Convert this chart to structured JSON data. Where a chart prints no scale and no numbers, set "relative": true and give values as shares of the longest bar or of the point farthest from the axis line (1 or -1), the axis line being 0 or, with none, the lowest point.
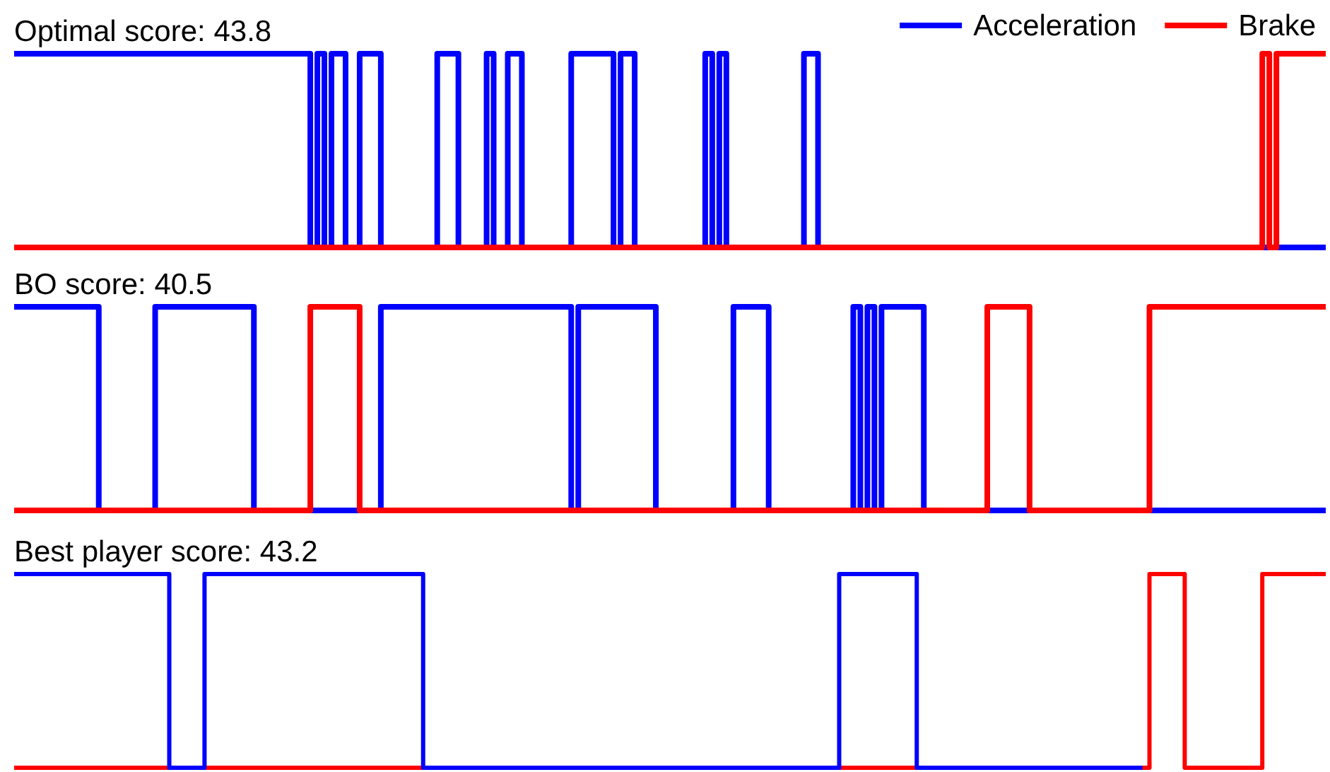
{
  "chart_data": [
    {
      "type": "step",
      "title": "Optimal score: 43.8",
      "relative": true,
      "legend": "top right",
      "categories": [
        null,
        null,
        null,
        null,
        null,
        null,
        null,
        null,
        null,
        null,
        null,
        null,
        null,
        null,
        null,
        null,
        null,
        null,
        null,
        null,
        null,
        null,
        null,
        null,
        null,
        null,
        null,
        null,
        null,
        null,
        null,
        null,
        null,
        null,
        null,
        null,
        null,
        null,
        null,
        null,
        null,
        null,
        null,
        null,
        null,
        null,
        null,
        null,
        null,
        null,
        null,
        null,
        null,
        null,
        null,
        null,
        null,
        null,
        null,
        null,
        null,
        null,
        null,
        null,
        null,
        null,
        null,
        null,
        null,
        null,
        null,
        null,
        null,
        null,
        null,
        null,
        null,
        null,
        null,
        null,
        null,
        null,
        null,
        null,
        null,
        null,
        null,
        null,
        null,
        null,
        null,
        null,
        null,
        null,
        null,
        null,
        null,
        null,
        null,
        null,
        null,
        null,
        null,
        null,
        null,
        null,
        null,
        null,
        null,
        null,
        null,
        null,
        null,
        null,
        null,
        null,
        null,
        null,
        null,
        null,
        null,
        null,
        null,
        null,
        null,
        null,
        null,
        null,
        null,
        null,
        null,
        null,
        null,
        null,
        null,
        null,
        null,
        null,
        null,
        null,
        null,
        null,
        null,
        null,
        null,
        null,
        null,
        null,
        null,
        null,
        null,
        null,
        null,
        null,
        null,
        null,
        null,
        null,
        null,
        null,
        null,
        null,
        null,
        null,
        null,
        null,
        null,
        null,
        null,
        null,
        null,
        null,
        null,
        null,
        null,
        null,
        null,
        null,
        null,
        null,
        null,
        null,
        null,
        null,
        null,
        null,
        null
      ],
      "series": [
        {
          "name": "Acceleration",
          "color": "#0000ff",
          "values": [
            1,
            1,
            1,
            1,
            1,
            1,
            1,
            1,
            1,
            1,
            1,
            1,
            1,
            1,
            1,
            1,
            1,
            1,
            1,
            1,
            1,
            1,
            1,
            1,
            1,
            1,
            1,
            1,
            1,
            1,
            1,
            1,
            1,
            1,
            1,
            1,
            1,
            1,
            1,
            1,
            1,
            1,
            0,
            1,
            0,
            1,
            1,
            0,
            0,
            1,
            1,
            1,
            0,
            0,
            0,
            0,
            0,
            0,
            0,
            0,
            1,
            1,
            1,
            0,
            0,
            0,
            0,
            1,
            0,
            0,
            1,
            1,
            0,
            0,
            0,
            0,
            0,
            0,
            0,
            1,
            1,
            1,
            1,
            1,
            1,
            0,
            1,
            1,
            0,
            0,
            0,
            0,
            0,
            0,
            0,
            0,
            0,
            0,
            1,
            0,
            1,
            0,
            0,
            0,
            0,
            0,
            0,
            0,
            0,
            0,
            0,
            0,
            1,
            1,
            0,
            0,
            0,
            0,
            0,
            0,
            0,
            0,
            0,
            0,
            0,
            0,
            0,
            0,
            0,
            0,
            0,
            0,
            0,
            0,
            0,
            0,
            0,
            0,
            0,
            0,
            0,
            0,
            0,
            0,
            0,
            0,
            0,
            0,
            0,
            0,
            0,
            0,
            0,
            0,
            0,
            0,
            0,
            0,
            0,
            0,
            0,
            0,
            0,
            0,
            0,
            0,
            0,
            0,
            0,
            0,
            0,
            0,
            0,
            0,
            0,
            0,
            0,
            0,
            0,
            0,
            0,
            0,
            0,
            0,
            0,
            0,
            0
          ]
        },
        {
          "name": "Brake",
          "color": "#ff0000",
          "values": [
            0,
            0,
            0,
            0,
            0,
            0,
            0,
            0,
            0,
            0,
            0,
            0,
            0,
            0,
            0,
            0,
            0,
            0,
            0,
            0,
            0,
            0,
            0,
            0,
            0,
            0,
            0,
            0,
            0,
            0,
            0,
            0,
            0,
            0,
            0,
            0,
            0,
            0,
            0,
            0,
            0,
            0,
            0,
            0,
            0,
            0,
            0,
            0,
            0,
            0,
            0,
            0,
            0,
            0,
            0,
            0,
            0,
            0,
            0,
            0,
            0,
            0,
            0,
            0,
            0,
            0,
            0,
            0,
            0,
            0,
            0,
            0,
            0,
            0,
            0,
            0,
            0,
            0,
            0,
            0,
            0,
            0,
            0,
            0,
            0,
            0,
            0,
            0,
            0,
            0,
            0,
            0,
            0,
            0,
            0,
            0,
            0,
            0,
            0,
            0,
            0,
            0,
            0,
            0,
            0,
            0,
            0,
            0,
            0,
            0,
            0,
            0,
            0,
            0,
            0,
            0,
            0,
            0,
            0,
            0,
            0,
            0,
            0,
            0,
            0,
            0,
            0,
            0,
            0,
            0,
            0,
            0,
            0,
            0,
            0,
            0,
            0,
            0,
            0,
            0,
            0,
            0,
            0,
            0,
            0,
            0,
            0,
            0,
            0,
            0,
            0,
            0,
            0,
            0,
            0,
            0,
            0,
            0,
            0,
            0,
            0,
            0,
            0,
            0,
            0,
            0,
            0,
            0,
            0,
            0,
            0,
            0,
            0,
            0,
            0,
            0,
            0,
            1,
            0,
            1,
            1,
            1,
            1,
            1,
            1,
            1,
            1
          ]
        }
      ]
    },
    {
      "type": "step",
      "title": "BO score: 40.5",
      "relative": true,
      "categories": [
        null,
        null,
        null,
        null,
        null,
        null,
        null,
        null,
        null,
        null,
        null,
        null,
        null,
        null,
        null,
        null,
        null,
        null,
        null,
        null,
        null,
        null,
        null,
        null,
        null,
        null,
        null,
        null,
        null,
        null,
        null,
        null,
        null,
        null,
        null,
        null,
        null,
        null,
        null,
        null,
        null,
        null,
        null,
        null,
        null,
        null,
        null,
        null,
        null,
        null,
        null,
        null,
        null,
        null,
        null,
        null,
        null,
        null,
        null,
        null,
        null,
        null,
        null,
        null,
        null,
        null,
        null,
        null,
        null,
        null,
        null,
        null,
        null,
        null,
        null,
        null,
        null,
        null,
        null,
        null,
        null,
        null,
        null,
        null,
        null,
        null,
        null,
        null,
        null,
        null,
        null,
        null,
        null,
        null,
        null,
        null,
        null,
        null,
        null,
        null,
        null,
        null,
        null,
        null,
        null,
        null,
        null,
        null,
        null,
        null,
        null,
        null,
        null,
        null,
        null,
        null,
        null,
        null,
        null,
        null,
        null,
        null,
        null,
        null,
        null,
        null,
        null,
        null,
        null,
        null,
        null,
        null,
        null,
        null,
        null,
        null,
        null,
        null,
        null,
        null,
        null,
        null,
        null,
        null,
        null,
        null,
        null,
        null,
        null,
        null,
        null,
        null,
        null,
        null,
        null,
        null,
        null,
        null,
        null,
        null,
        null,
        null,
        null,
        null,
        null,
        null,
        null,
        null,
        null,
        null,
        null,
        null,
        null,
        null,
        null,
        null,
        null,
        null,
        null,
        null,
        null,
        null,
        null,
        null,
        null,
        null,
        null
      ],
      "series": [
        {
          "color": "#0000ff",
          "values": [
            1,
            1,
            1,
            1,
            1,
            1,
            1,
            1,
            1,
            1,
            1,
            1,
            0,
            0,
            0,
            0,
            0,
            0,
            0,
            0,
            1,
            1,
            1,
            1,
            1,
            1,
            1,
            1,
            1,
            1,
            1,
            1,
            1,
            1,
            0,
            0,
            0,
            0,
            0,
            0,
            0,
            0,
            0,
            0,
            0,
            0,
            0,
            0,
            0,
            0,
            0,
            0,
            1,
            1,
            1,
            1,
            1,
            1,
            1,
            1,
            1,
            1,
            1,
            1,
            1,
            1,
            1,
            1,
            1,
            1,
            1,
            1,
            1,
            1,
            1,
            1,
            1,
            1,
            1,
            0,
            1,
            1,
            1,
            1,
            1,
            1,
            1,
            1,
            1,
            1,
            1,
            0,
            0,
            0,
            0,
            0,
            0,
            0,
            0,
            0,
            0,
            0,
            1,
            1,
            1,
            1,
            1,
            0,
            0,
            0,
            0,
            0,
            0,
            0,
            0,
            0,
            0,
            0,
            0,
            1,
            0,
            1,
            0,
            1,
            1,
            1,
            1,
            1,
            1,
            0,
            0,
            0,
            0,
            0,
            0,
            0,
            0,
            0,
            0,
            0,
            0,
            0,
            0,
            0,
            0,
            0,
            0,
            0,
            0,
            0,
            0,
            0,
            0,
            0,
            0,
            0,
            0,
            0,
            0,
            0,
            0,
            0,
            0,
            0,
            0,
            0,
            0,
            0,
            0,
            0,
            0,
            0,
            0,
            0,
            0,
            0,
            0,
            0,
            0,
            0,
            0,
            0,
            0,
            0,
            0,
            0,
            0
          ]
        },
        {
          "color": "#ff0000",
          "values": [
            0,
            0,
            0,
            0,
            0,
            0,
            0,
            0,
            0,
            0,
            0,
            0,
            0,
            0,
            0,
            0,
            0,
            0,
            0,
            0,
            0,
            0,
            0,
            0,
            0,
            0,
            0,
            0,
            0,
            0,
            0,
            0,
            0,
            0,
            0,
            0,
            0,
            0,
            0,
            0,
            0,
            0,
            1,
            1,
            1,
            1,
            1,
            1,
            1,
            0,
            0,
            0,
            0,
            0,
            0,
            0,
            0,
            0,
            0,
            0,
            0,
            0,
            0,
            0,
            0,
            0,
            0,
            0,
            0,
            0,
            0,
            0,
            0,
            0,
            0,
            0,
            0,
            0,
            0,
            0,
            0,
            0,
            0,
            0,
            0,
            0,
            0,
            0,
            0,
            0,
            0,
            0,
            0,
            0,
            0,
            0,
            0,
            0,
            0,
            0,
            0,
            0,
            0,
            0,
            0,
            0,
            0,
            0,
            0,
            0,
            0,
            0,
            0,
            0,
            0,
            0,
            0,
            0,
            0,
            0,
            0,
            0,
            0,
            0,
            0,
            0,
            0,
            0,
            0,
            0,
            0,
            0,
            0,
            0,
            0,
            0,
            0,
            0,
            1,
            1,
            1,
            1,
            1,
            1,
            0,
            0,
            0,
            0,
            0,
            0,
            0,
            0,
            0,
            0,
            0,
            0,
            0,
            0,
            0,
            0,
            0,
            1,
            1,
            1,
            1,
            1,
            1,
            1,
            1,
            1,
            1,
            1,
            1,
            1,
            1,
            1,
            1,
            1,
            1,
            1,
            1,
            1,
            1,
            1,
            1,
            1,
            1
          ]
        }
      ]
    },
    {
      "type": "step",
      "title": "Best player score: 43.2",
      "relative": true,
      "categories": [
        null,
        null,
        null,
        null,
        null,
        null,
        null,
        null,
        null,
        null,
        null,
        null,
        null,
        null,
        null,
        null,
        null,
        null,
        null,
        null,
        null,
        null,
        null,
        null,
        null,
        null,
        null,
        null,
        null,
        null,
        null,
        null,
        null,
        null,
        null,
        null,
        null,
        null,
        null,
        null,
        null,
        null,
        null,
        null,
        null,
        null,
        null,
        null,
        null,
        null,
        null,
        null,
        null,
        null,
        null,
        null,
        null,
        null,
        null,
        null,
        null,
        null,
        null,
        null,
        null,
        null,
        null,
        null,
        null,
        null,
        null,
        null,
        null,
        null,
        null,
        null,
        null,
        null,
        null,
        null,
        null,
        null,
        null,
        null,
        null,
        null,
        null,
        null,
        null,
        null,
        null,
        null,
        null,
        null,
        null,
        null,
        null,
        null,
        null,
        null,
        null,
        null,
        null,
        null,
        null,
        null,
        null,
        null,
        null,
        null,
        null,
        null,
        null,
        null,
        null,
        null,
        null,
        null,
        null,
        null,
        null,
        null,
        null,
        null,
        null,
        null,
        null,
        null,
        null,
        null,
        null,
        null,
        null,
        null,
        null,
        null,
        null,
        null,
        null,
        null,
        null,
        null,
        null,
        null,
        null,
        null,
        null,
        null,
        null,
        null,
        null,
        null,
        null,
        null,
        null,
        null,
        null,
        null,
        null,
        null,
        null,
        null,
        null,
        null,
        null,
        null,
        null,
        null,
        null,
        null,
        null,
        null,
        null,
        null,
        null,
        null,
        null,
        null,
        null,
        null,
        null,
        null,
        null,
        null,
        null,
        null,
        null
      ],
      "series": [
        {
          "color": "#ff0000",
          "values": [
            0,
            0,
            0,
            0,
            0,
            0,
            0,
            0,
            0,
            0,
            0,
            0,
            0,
            0,
            0,
            0,
            0,
            0,
            0,
            0,
            0,
            0,
            0,
            0,
            0,
            0,
            0,
            0,
            0,
            0,
            0,
            0,
            0,
            0,
            0,
            0,
            0,
            0,
            0,
            0,
            0,
            0,
            0,
            0,
            0,
            0,
            0,
            0,
            0,
            0,
            0,
            0,
            0,
            0,
            0,
            0,
            0,
            0,
            0,
            0,
            0,
            0,
            0,
            0,
            0,
            0,
            0,
            0,
            0,
            0,
            0,
            0,
            0,
            0,
            0,
            0,
            0,
            0,
            0,
            0,
            0,
            0,
            0,
            0,
            0,
            0,
            0,
            0,
            0,
            0,
            0,
            0,
            0,
            0,
            0,
            0,
            0,
            0,
            0,
            0,
            0,
            0,
            0,
            0,
            0,
            0,
            0,
            0,
            0,
            0,
            0,
            0,
            0,
            0,
            0,
            0,
            0,
            0,
            0,
            0,
            0,
            0,
            0,
            0,
            0,
            0,
            0,
            0,
            0,
            0,
            0,
            0,
            0,
            0,
            0,
            0,
            0,
            0,
            0,
            0,
            0,
            0,
            0,
            0,
            0,
            0,
            0,
            0,
            0,
            0,
            0,
            0,
            0,
            0,
            0,
            0,
            0,
            0,
            0,
            0,
            0,
            1,
            1,
            1,
            1,
            1,
            0,
            0,
            0,
            0,
            0,
            0,
            0,
            0,
            0,
            0,
            0,
            1,
            1,
            1,
            1,
            1,
            1,
            1,
            1,
            1,
            1
          ]
        },
        {
          "color": "#0000ff",
          "values": [
            1,
            1,
            1,
            1,
            1,
            1,
            1,
            1,
            1,
            1,
            1,
            1,
            1,
            1,
            1,
            1,
            1,
            1,
            1,
            1,
            1,
            1,
            0,
            0,
            0,
            0,
            0,
            1,
            1,
            1,
            1,
            1,
            1,
            1,
            1,
            1,
            1,
            1,
            1,
            1,
            1,
            1,
            1,
            1,
            1,
            1,
            1,
            1,
            1,
            1,
            1,
            1,
            1,
            1,
            1,
            1,
            1,
            1,
            0,
            0,
            0,
            0,
            0,
            0,
            0,
            0,
            0,
            0,
            0,
            0,
            0,
            0,
            0,
            0,
            0,
            0,
            0,
            0,
            0,
            0,
            0,
            0,
            0,
            0,
            0,
            0,
            0,
            0,
            0,
            0,
            0,
            0,
            0,
            0,
            0,
            0,
            0,
            0,
            0,
            0,
            0,
            0,
            0,
            0,
            0,
            0,
            0,
            0,
            0,
            0,
            0,
            0,
            0,
            0,
            0,
            0,
            0,
            1,
            1,
            1,
            1,
            1,
            1,
            1,
            1,
            1,
            1,
            1,
            0,
            0,
            0,
            0,
            0,
            0,
            0,
            0,
            0,
            0,
            0,
            0,
            0,
            0,
            0,
            0,
            0,
            0,
            0,
            0,
            0,
            0,
            0,
            0,
            0,
            0,
            0,
            0,
            0,
            0,
            0,
            0,
            0,
            null,
            null,
            null,
            null,
            null,
            null,
            null,
            null,
            null,
            null,
            null,
            null,
            null,
            null,
            null,
            null,
            null,
            null,
            null,
            null,
            null,
            null,
            null,
            null,
            null,
            null
          ]
        }
      ]
    }
  ]
}
